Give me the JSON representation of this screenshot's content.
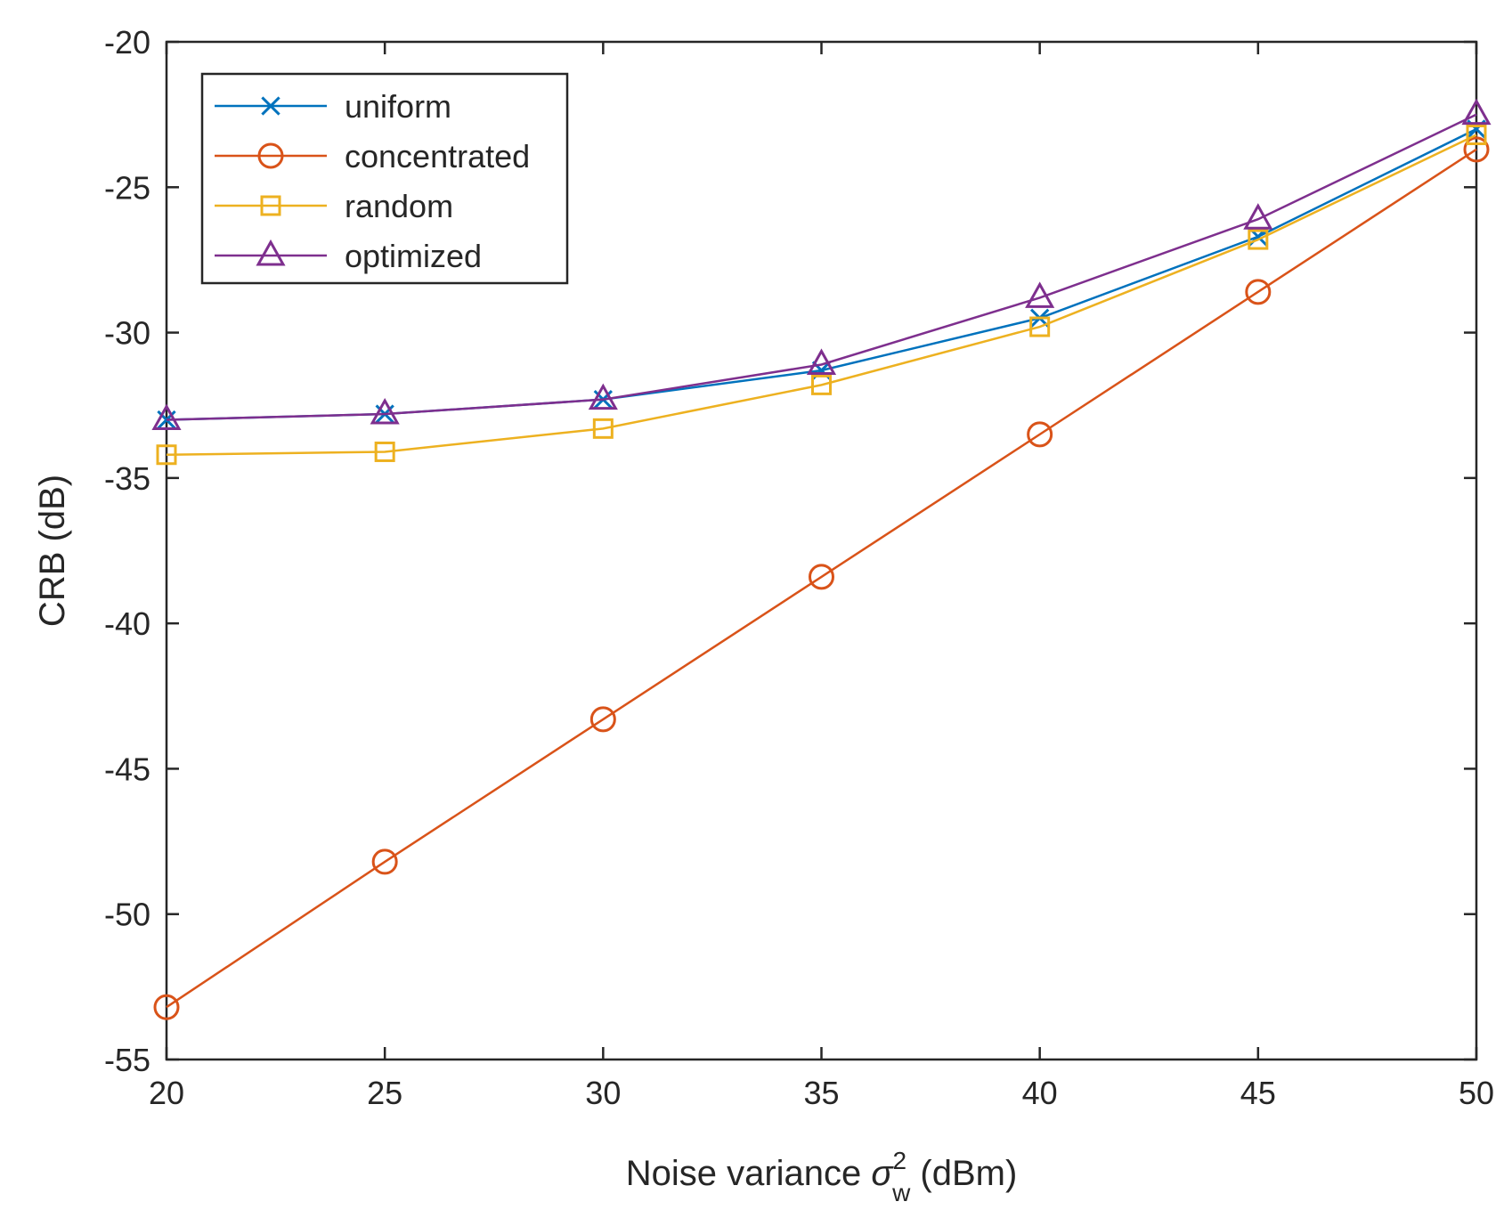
{
  "chart_data": {
    "type": "line",
    "title": "",
    "xlabel_parts": {
      "pre": "Noise variance ",
      "symbol": "σ",
      "sup": "2",
      "sub": "w",
      "post": " (dBm)"
    },
    "ylabel": "CRB (dB)",
    "x": [
      20,
      25,
      30,
      35,
      40,
      45,
      50
    ],
    "xlim": [
      20,
      50
    ],
    "ylim": [
      -55,
      -20
    ],
    "xticks": [
      20,
      25,
      30,
      35,
      40,
      45,
      50
    ],
    "yticks": [
      -20,
      -25,
      -30,
      -35,
      -40,
      -45,
      -50,
      -55
    ],
    "grid": false,
    "legend_position": "top-left",
    "series": [
      {
        "name": "uniform",
        "color": "#0072BD",
        "marker": "x",
        "values": [
          -33.0,
          -32.8,
          -32.3,
          -31.3,
          -29.5,
          -26.7,
          -23.0
        ]
      },
      {
        "name": "concentrated",
        "color": "#D95319",
        "marker": "circle",
        "values": [
          -53.2,
          -48.2,
          -43.3,
          -38.4,
          -33.5,
          -28.6,
          -23.7
        ]
      },
      {
        "name": "random",
        "color": "#EDB120",
        "marker": "square",
        "values": [
          -34.2,
          -34.1,
          -33.3,
          -31.8,
          -29.8,
          -26.8,
          -23.2
        ]
      },
      {
        "name": "optimized",
        "color": "#7E2F8E",
        "marker": "triangle",
        "values": [
          -33.0,
          -32.8,
          -32.3,
          -31.1,
          -28.8,
          -26.1,
          -22.5
        ]
      }
    ]
  }
}
